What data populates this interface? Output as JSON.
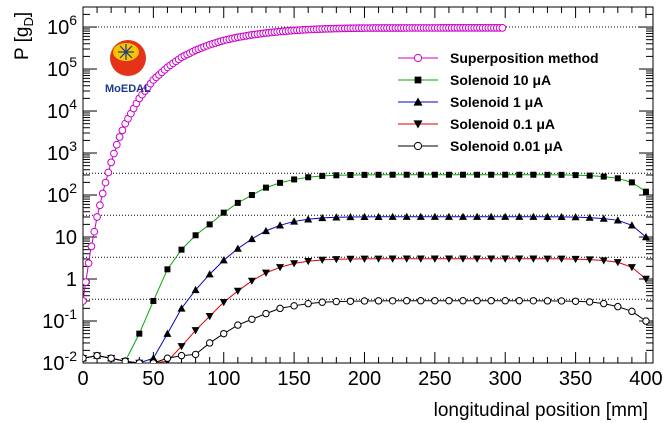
{
  "chart_data": {
    "type": "scatter",
    "xlabel": "longitudinal position [mm]",
    "ylabel": "P [g",
    "ylabel_sub": "D",
    "ylabel_close": "]",
    "xlim": [
      0,
      405
    ],
    "ylim": [
      0.01,
      3000000
    ],
    "yscale": "log",
    "grid": false,
    "legend_position": "top-right",
    "x_ticks": [
      0,
      50,
      100,
      150,
      200,
      250,
      300,
      350,
      400
    ],
    "x_tick_labels": [
      "0",
      "50",
      "100",
      "150",
      "200",
      "250",
      "300",
      "350",
      "400"
    ],
    "y_ticks": [
      0.01,
      0.1,
      1,
      10,
      100,
      1000,
      10000,
      100000,
      1000000
    ],
    "y_tick_labels": [
      {
        "base": "10",
        "exp": "-2"
      },
      {
        "base": "10",
        "exp": "-1"
      },
      {
        "base": "1",
        "exp": ""
      },
      {
        "base": "10",
        "exp": ""
      },
      {
        "base": "10",
        "exp": "2"
      },
      {
        "base": "10",
        "exp": "3"
      },
      {
        "base": "10",
        "exp": "4"
      },
      {
        "base": "10",
        "exp": "5"
      },
      {
        "base": "10",
        "exp": "6"
      }
    ],
    "reference_lines": [
      1000000,
      330,
      33,
      3.3,
      0.33
    ],
    "logo_text": "MoEDAL",
    "series": [
      {
        "name": "Superposition method",
        "color": "#cc00cc",
        "marker": "open-circle",
        "x": [
          0,
          5,
          10,
          15,
          20,
          25,
          30,
          40,
          50,
          60,
          70,
          80,
          90,
          100,
          110,
          120,
          130,
          140,
          150,
          160,
          170,
          180,
          190,
          200,
          220,
          240,
          260,
          280,
          298
        ],
        "y": [
          0.3,
          4,
          30,
          150,
          600,
          2000,
          5000,
          20000,
          55000,
          110000,
          190000,
          280000,
          380000,
          480000,
          570000,
          650000,
          720000,
          780000,
          830000,
          870000,
          900000,
          920000,
          935000,
          945000,
          950000,
          952000,
          953000,
          953000,
          953000
        ]
      },
      {
        "name": "Solenoid 10 μA",
        "color": "#00aa00",
        "marker": "filled-square",
        "x": [
          0,
          10,
          20,
          30,
          40,
          50,
          60,
          70,
          80,
          90,
          100,
          110,
          120,
          130,
          140,
          150,
          160,
          170,
          180,
          190,
          200,
          210,
          220,
          230,
          240,
          250,
          260,
          270,
          280,
          290,
          300,
          310,
          320,
          330,
          340,
          350,
          360,
          370,
          380,
          390,
          400
        ],
        "y": [
          0.013,
          0.015,
          0.013,
          0.011,
          0.05,
          0.3,
          1.7,
          5,
          11,
          20,
          38,
          65,
          100,
          150,
          195,
          235,
          265,
          285,
          295,
          300,
          302,
          303,
          304,
          304,
          304,
          304,
          304,
          304,
          304,
          304,
          304,
          304,
          304,
          303,
          302,
          298,
          290,
          275,
          250,
          200,
          120
        ]
      },
      {
        "name": "Solenoid 1 μA",
        "color": "#0000cc",
        "marker": "filled-triangle-up",
        "x": [
          0,
          10,
          20,
          30,
          40,
          50,
          60,
          70,
          80,
          90,
          100,
          110,
          120,
          130,
          140,
          150,
          160,
          170,
          180,
          190,
          200,
          210,
          220,
          230,
          240,
          250,
          260,
          270,
          280,
          290,
          300,
          310,
          320,
          330,
          340,
          350,
          360,
          370,
          380,
          390,
          400
        ],
        "y": [
          0.013,
          0.015,
          0.013,
          0.011,
          0.01,
          0.013,
          0.05,
          0.2,
          0.55,
          1.3,
          2.8,
          5.3,
          9,
          14,
          19,
          23.5,
          26.5,
          28.5,
          29.5,
          30,
          30.2,
          30.3,
          30.4,
          30.4,
          30.4,
          30.4,
          30.4,
          30.4,
          30.4,
          30.4,
          30.4,
          30.4,
          30.4,
          30.3,
          30.2,
          29.8,
          29,
          27.5,
          25,
          19,
          10
        ]
      },
      {
        "name": "Solenoid 0.1 μA",
        "color": "#dd0000",
        "marker": "filled-triangle-down",
        "x": [
          0,
          10,
          20,
          30,
          40,
          50,
          60,
          70,
          80,
          90,
          100,
          110,
          120,
          130,
          140,
          150,
          160,
          170,
          180,
          190,
          200,
          210,
          220,
          230,
          240,
          250,
          260,
          270,
          280,
          290,
          300,
          310,
          320,
          330,
          340,
          350,
          360,
          370,
          380,
          390,
          400
        ],
        "y": [
          0.013,
          0.015,
          0.013,
          0.011,
          0.01,
          0.01,
          0.011,
          0.025,
          0.06,
          0.13,
          0.28,
          0.52,
          0.9,
          1.4,
          1.9,
          2.35,
          2.65,
          2.85,
          2.95,
          3.0,
          3.02,
          3.03,
          3.04,
          3.04,
          3.04,
          3.04,
          3.04,
          3.04,
          3.04,
          3.04,
          3.04,
          3.04,
          3.04,
          3.03,
          3.02,
          2.98,
          2.9,
          2.75,
          2.5,
          1.9,
          1.0
        ]
      },
      {
        "name": "Solenoid 0.01 μA",
        "color": "#000000",
        "marker": "open-circle",
        "x": [
          0,
          10,
          20,
          30,
          40,
          50,
          60,
          70,
          80,
          90,
          100,
          110,
          120,
          130,
          140,
          150,
          160,
          170,
          180,
          190,
          200,
          210,
          220,
          230,
          240,
          250,
          260,
          270,
          280,
          290,
          300,
          310,
          320,
          330,
          340,
          350,
          360,
          370,
          380,
          390,
          400
        ],
        "y": [
          0.013,
          0.015,
          0.013,
          0.011,
          0.01,
          0.01,
          0.013,
          0.015,
          0.016,
          0.03,
          0.05,
          0.08,
          0.11,
          0.15,
          0.2,
          0.23,
          0.26,
          0.28,
          0.29,
          0.295,
          0.3,
          0.302,
          0.303,
          0.304,
          0.304,
          0.304,
          0.304,
          0.304,
          0.304,
          0.304,
          0.304,
          0.304,
          0.303,
          0.302,
          0.3,
          0.295,
          0.285,
          0.26,
          0.22,
          0.17,
          0.1
        ]
      }
    ]
  }
}
